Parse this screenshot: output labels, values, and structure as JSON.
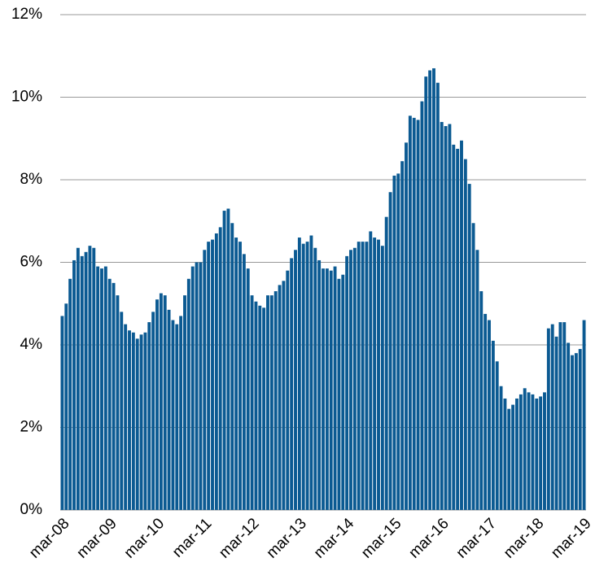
{
  "chart_data": {
    "type": "bar",
    "color": "#0b5a92",
    "grid": true,
    "categories": [
      "mar-08",
      null,
      null,
      null,
      null,
      null,
      null,
      null,
      null,
      null,
      null,
      null,
      "mar-09",
      null,
      null,
      null,
      null,
      null,
      null,
      null,
      null,
      null,
      null,
      null,
      "mar-10",
      null,
      null,
      null,
      null,
      null,
      null,
      null,
      null,
      null,
      null,
      null,
      "mar-11",
      null,
      null,
      null,
      null,
      null,
      null,
      null,
      null,
      null,
      null,
      null,
      "mar-12",
      null,
      null,
      null,
      null,
      null,
      null,
      null,
      null,
      null,
      null,
      null,
      "mar-13",
      null,
      null,
      null,
      null,
      null,
      null,
      null,
      null,
      null,
      null,
      null,
      "mar-14",
      null,
      null,
      null,
      null,
      null,
      null,
      null,
      null,
      null,
      null,
      null,
      "mar-15",
      null,
      null,
      null,
      null,
      null,
      null,
      null,
      null,
      null,
      null,
      null,
      "mar-16",
      null,
      null,
      null,
      null,
      null,
      null,
      null,
      null,
      null,
      null,
      null,
      "mar-17",
      null,
      null,
      null,
      null,
      null,
      null,
      null,
      null,
      null,
      null,
      null,
      "mar-18",
      null,
      null,
      null,
      null,
      null,
      null,
      null,
      null,
      null,
      null,
      null,
      "mar-19"
    ],
    "values": [
      4.7,
      5.0,
      5.6,
      6.05,
      6.35,
      6.15,
      6.25,
      6.4,
      6.35,
      5.9,
      5.85,
      5.9,
      5.6,
      5.5,
      5.2,
      4.8,
      4.5,
      4.35,
      4.3,
      4.15,
      4.25,
      4.3,
      4.55,
      4.8,
      5.1,
      5.25,
      5.2,
      4.85,
      4.6,
      4.5,
      4.7,
      5.2,
      5.6,
      5.9,
      6.0,
      6.0,
      6.3,
      6.5,
      6.55,
      6.7,
      6.85,
      7.25,
      7.3,
      6.95,
      6.6,
      6.5,
      6.2,
      5.85,
      5.2,
      5.05,
      4.95,
      4.9,
      5.2,
      5.2,
      5.3,
      5.45,
      5.55,
      5.8,
      6.1,
      6.3,
      6.6,
      6.45,
      6.5,
      6.65,
      6.35,
      6.05,
      5.85,
      5.85,
      5.8,
      5.9,
      5.6,
      5.7,
      6.15,
      6.3,
      6.35,
      6.5,
      6.5,
      6.5,
      6.75,
      6.6,
      6.55,
      6.4,
      7.1,
      7.7,
      8.1,
      8.15,
      8.45,
      8.9,
      9.55,
      9.5,
      9.45,
      9.9,
      10.5,
      10.65,
      10.7,
      10.35,
      9.4,
      9.3,
      9.35,
      8.85,
      8.75,
      8.95,
      8.5,
      7.9,
      6.95,
      6.3,
      5.3,
      4.75,
      4.6,
      4.1,
      3.6,
      3.0,
      2.7,
      2.45,
      2.55,
      2.7,
      2.8,
      2.95,
      2.85,
      2.8,
      2.7,
      2.75,
      2.85,
      4.4,
      4.5,
      4.2,
      4.55,
      4.55,
      4.05,
      3.75,
      3.8,
      3.9,
      4.6
    ],
    "ylim": [
      0,
      12
    ],
    "yticks": [
      {
        "value": 0,
        "label": "0%"
      },
      {
        "value": 2,
        "label": "2%"
      },
      {
        "value": 4,
        "label": "4%"
      },
      {
        "value": 6,
        "label": "6%"
      },
      {
        "value": 8,
        "label": "8%"
      },
      {
        "value": 10,
        "label": "10%"
      },
      {
        "value": 12,
        "label": "12%"
      }
    ]
  }
}
